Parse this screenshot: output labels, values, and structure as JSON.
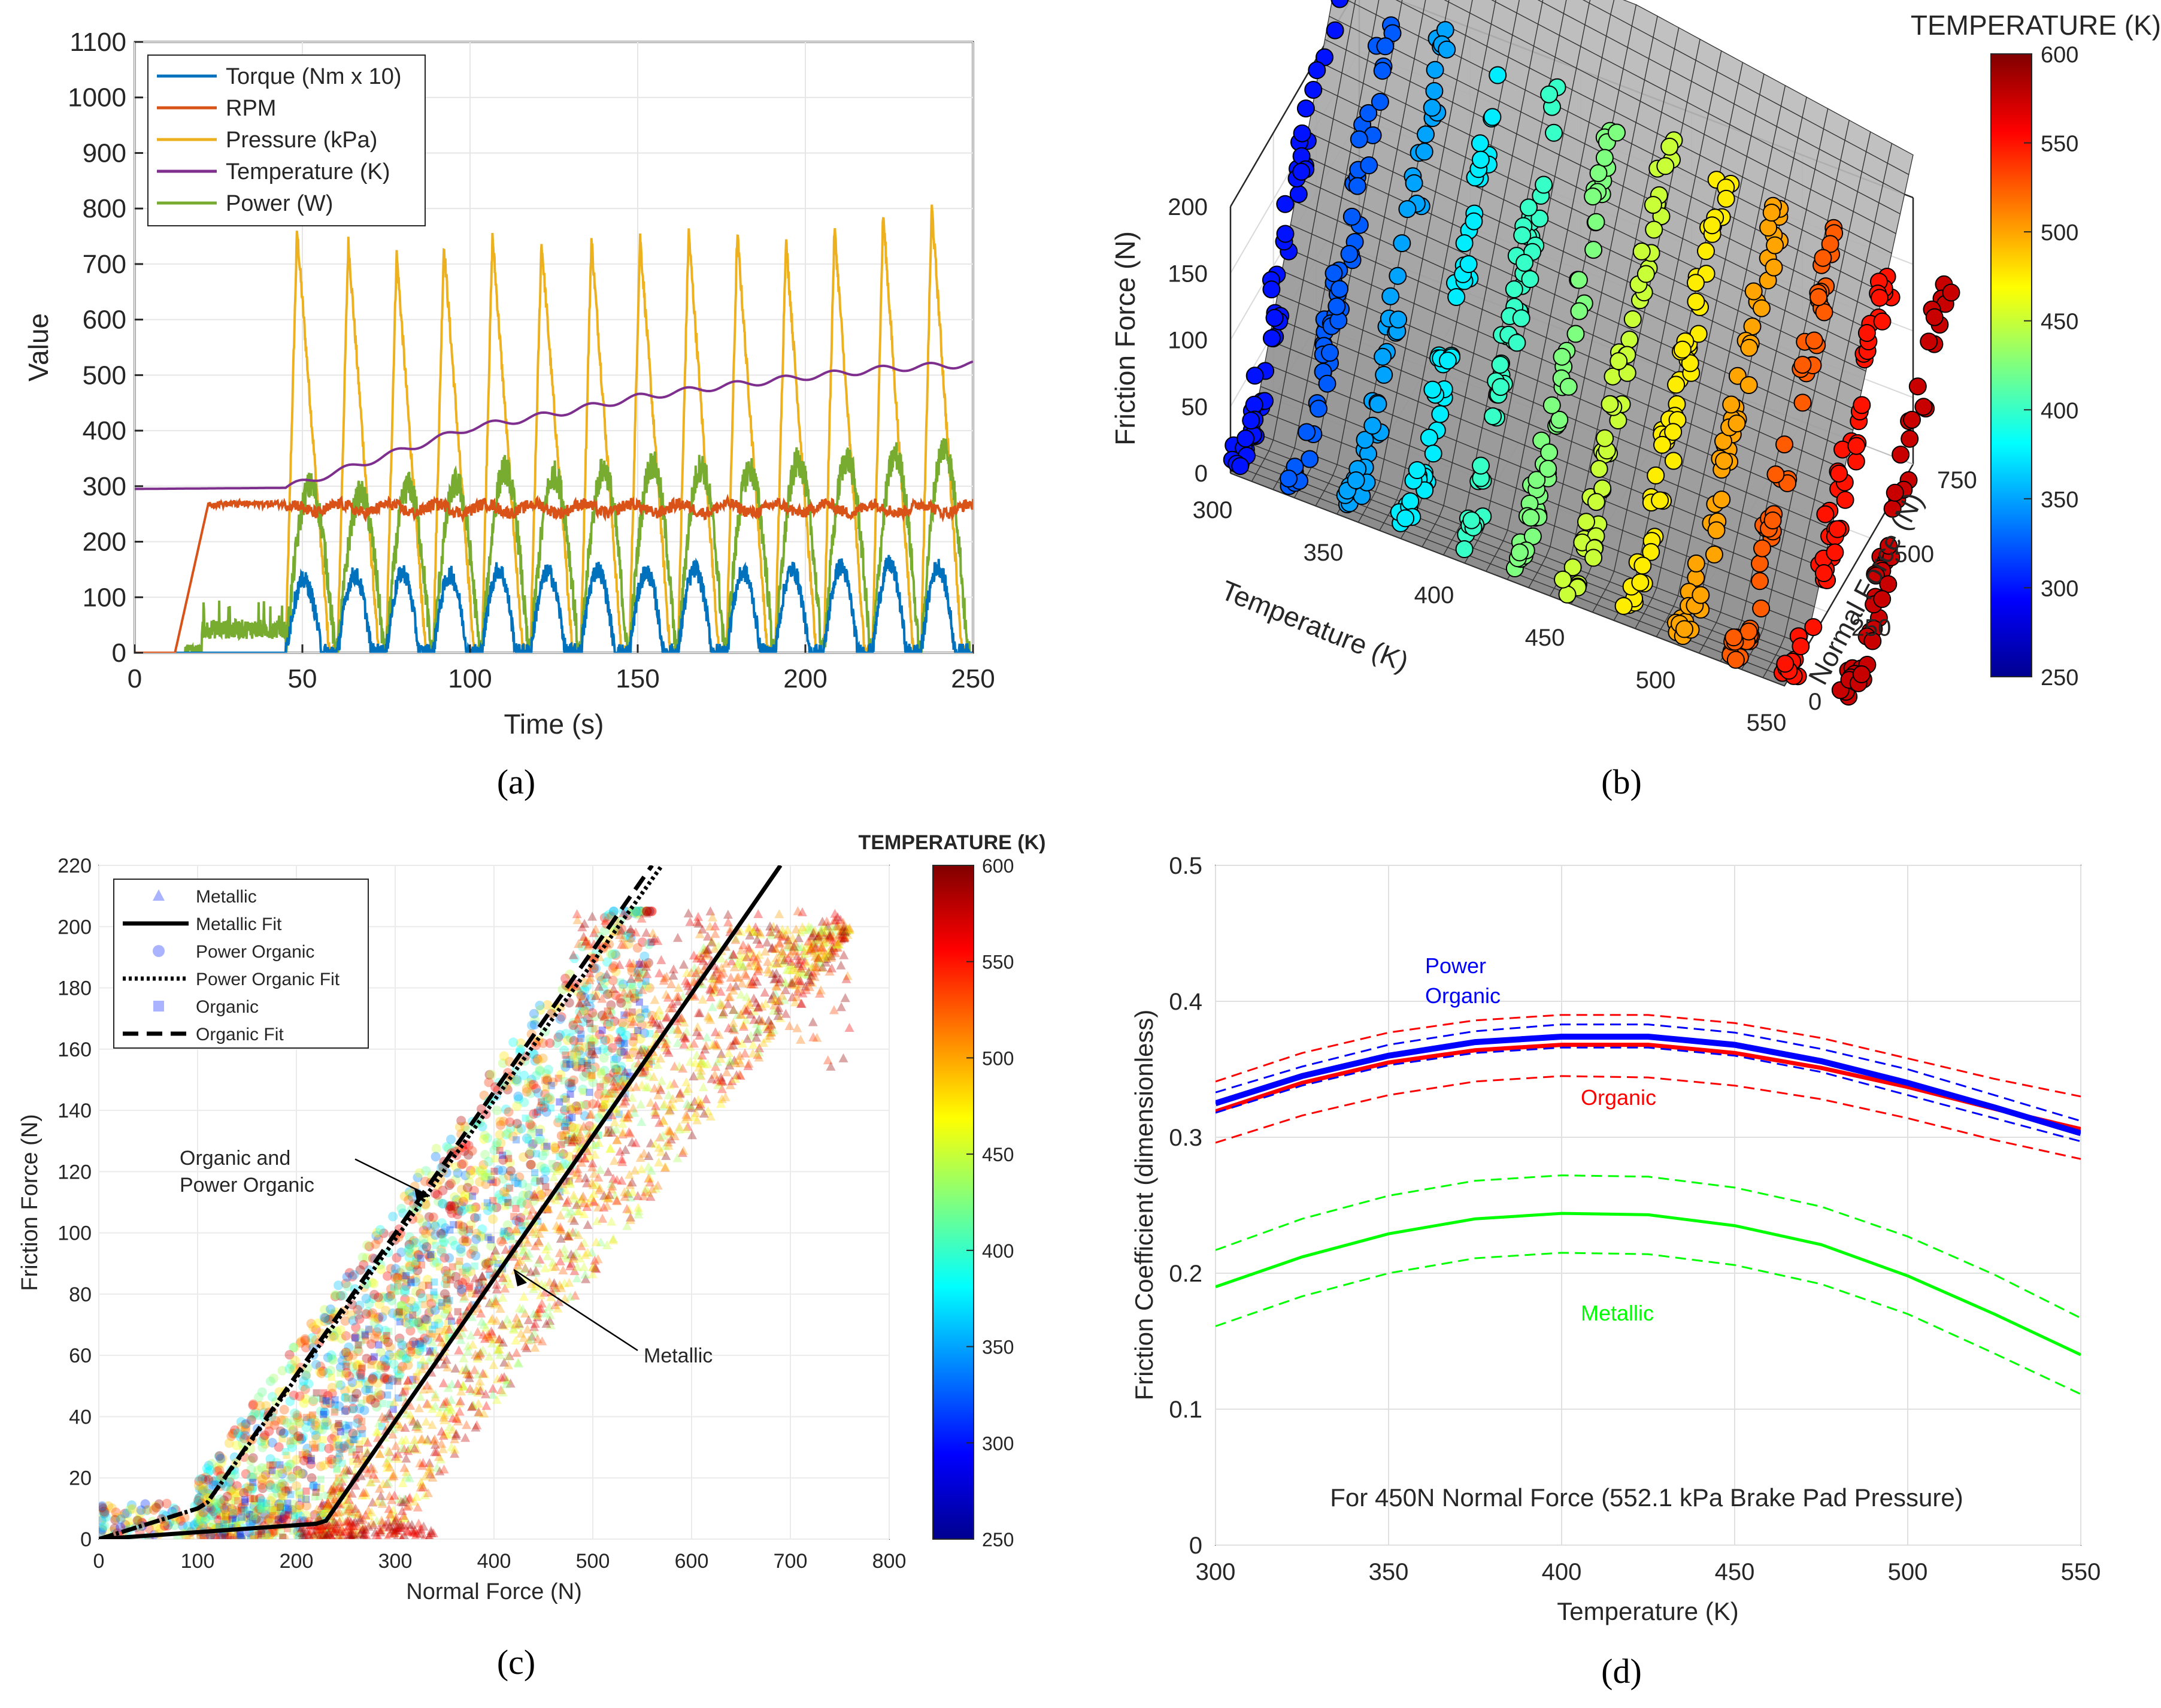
{
  "panels": {
    "a": {
      "label": "(a)"
    },
    "b": {
      "label": "(b)"
    },
    "c": {
      "label": "(c)"
    },
    "d": {
      "label": "(d)"
    }
  },
  "colors": {
    "torque": "#0072BD",
    "rpm": "#D95319",
    "pressure": "#EDB120",
    "temperature": "#7E2F8E",
    "power": "#77AC30",
    "power_organic": "#0000ff",
    "organic": "#ff0000",
    "metallic": "#00ff00"
  },
  "chart_data": [
    {
      "id": "a",
      "type": "line",
      "title": "",
      "xlabel": "Time (s)",
      "ylabel": "Value",
      "xlim": [
        0,
        250
      ],
      "ylim": [
        0,
        1100
      ],
      "xticks": [
        0,
        50,
        100,
        150,
        200,
        250
      ],
      "yticks": [
        0,
        100,
        200,
        300,
        400,
        500,
        600,
        700,
        800,
        900,
        1000,
        1100
      ],
      "legend": [
        "Torque (Nm x 10)",
        "RPM",
        "Pressure (kPa)",
        "Temperature (K)",
        "Power (W)"
      ],
      "cycle_starts": [
        45,
        60.5,
        75,
        89,
        103.5,
        118,
        133,
        147.5,
        162,
        176.5,
        191,
        205.5,
        220,
        234.5
      ],
      "pressure_peaks": [
        760,
        740,
        720,
        735,
        750,
        740,
        745,
        750,
        760,
        755,
        745,
        765,
        790,
        805
      ],
      "power_peaks": [
        300,
        285,
        300,
        305,
        330,
        320,
        330,
        340,
        335,
        330,
        345,
        350,
        355,
        370
      ],
      "torque_peaks": [
        130,
        140,
        145,
        140,
        150,
        145,
        150,
        145,
        150,
        145,
        150,
        155,
        160,
        155
      ],
      "rpm_level": 260,
      "rpm_ramp": [
        [
          0,
          0
        ],
        [
          12,
          0
        ],
        [
          22,
          270
        ]
      ],
      "temperature_curve": [
        [
          0,
          295
        ],
        [
          45,
          297
        ],
        [
          60,
          325
        ],
        [
          80,
          365
        ],
        [
          100,
          405
        ],
        [
          125,
          430
        ],
        [
          150,
          460
        ],
        [
          175,
          480
        ],
        [
          200,
          497
        ],
        [
          225,
          512
        ],
        [
          250,
          520
        ]
      ]
    },
    {
      "id": "b",
      "type": "scatter3d",
      "xlabel": "Temperature (K)",
      "ylabel": "Normal Force (N)",
      "zlabel": "Friction Force (N)",
      "xticks": [
        300,
        350,
        400,
        450,
        500,
        550
      ],
      "yticks": [
        0,
        250,
        500,
        750
      ],
      "zticks": [
        0,
        50,
        100,
        150,
        200
      ],
      "colorbar_title": "TEMPERATURE (K)",
      "colorbar_range": [
        250,
        600
      ],
      "colorbar_ticks": [
        250,
        300,
        350,
        400,
        450,
        500,
        550,
        600
      ],
      "temperature_bands": [
        300,
        325,
        350,
        375,
        400,
        425,
        450,
        475,
        500,
        525,
        550,
        575
      ]
    },
    {
      "id": "c",
      "type": "scatter",
      "xlabel": "Normal Force (N)",
      "ylabel": "Friction Force (N)",
      "xlim": [
        0,
        800
      ],
      "ylim": [
        0,
        220
      ],
      "xticks": [
        0,
        100,
        200,
        300,
        400,
        500,
        600,
        700,
        800
      ],
      "yticks": [
        0,
        20,
        40,
        60,
        80,
        100,
        120,
        140,
        160,
        180,
        200,
        220
      ],
      "legend": [
        "Metallic",
        "Metallic Fit",
        "Power Organic",
        "Power Organic Fit",
        "Organic",
        "Organic Fit"
      ],
      "fits": {
        "metallic": [
          [
            0,
            0
          ],
          [
            220,
            5
          ],
          [
            230,
            6
          ],
          [
            690,
            220
          ]
        ],
        "power_organic": [
          [
            0,
            0
          ],
          [
            100,
            10
          ],
          [
            110,
            12
          ],
          [
            570,
            220
          ]
        ],
        "organic": [
          [
            0,
            0
          ],
          [
            100,
            10
          ],
          [
            110,
            12
          ],
          [
            560,
            220
          ]
        ]
      },
      "annotations": [
        {
          "text1": "Organic and",
          "text2": "Power Organic",
          "from": [
            120,
            128
          ],
          "to": [
            335,
            112
          ]
        },
        {
          "text1": "Metallic",
          "from": [
            550,
            66
          ],
          "to": [
            420,
            88
          ]
        }
      ],
      "colorbar_title": "TEMPERATURE (K)",
      "colorbar_range": [
        250,
        600
      ],
      "colorbar_ticks": [
        250,
        300,
        350,
        400,
        450,
        500,
        550,
        600
      ]
    },
    {
      "id": "d",
      "type": "line",
      "xlabel": "Temperature (K)",
      "ylabel": "Friction Coefficient (dimensionless)",
      "xlim": [
        300,
        550
      ],
      "ylim": [
        0,
        0.5
      ],
      "xticks": [
        300,
        350,
        400,
        450,
        500,
        550
      ],
      "yticks": [
        0,
        0.1,
        0.2,
        0.3,
        0.4,
        0.5
      ],
      "x": [
        300,
        325,
        350,
        375,
        400,
        425,
        450,
        475,
        500,
        525,
        550
      ],
      "series": [
        {
          "name": "Power Organic",
          "values": [
            0.325,
            0.345,
            0.36,
            0.37,
            0.374,
            0.374,
            0.368,
            0.356,
            0.34,
            0.322,
            0.303
          ],
          "upper": [
            0.333,
            0.352,
            0.368,
            0.378,
            0.383,
            0.383,
            0.377,
            0.365,
            0.35,
            0.331,
            0.312
          ],
          "lower": [
            0.318,
            0.338,
            0.353,
            0.362,
            0.366,
            0.366,
            0.36,
            0.348,
            0.331,
            0.314,
            0.297
          ]
        },
        {
          "name": "Organic",
          "values": [
            0.319,
            0.34,
            0.355,
            0.364,
            0.368,
            0.368,
            0.362,
            0.351,
            0.337,
            0.321,
            0.306
          ],
          "upper": [
            0.341,
            0.362,
            0.377,
            0.386,
            0.39,
            0.39,
            0.384,
            0.373,
            0.358,
            0.343,
            0.33
          ],
          "lower": [
            0.296,
            0.316,
            0.331,
            0.341,
            0.345,
            0.344,
            0.338,
            0.328,
            0.314,
            0.298,
            0.284
          ]
        },
        {
          "name": "Metallic",
          "values": [
            0.19,
            0.212,
            0.229,
            0.24,
            0.244,
            0.243,
            0.235,
            0.221,
            0.198,
            0.17,
            0.14
          ],
          "upper": [
            0.217,
            0.24,
            0.257,
            0.268,
            0.272,
            0.271,
            0.263,
            0.249,
            0.227,
            0.199,
            0.167
          ],
          "lower": [
            0.161,
            0.183,
            0.2,
            0.211,
            0.215,
            0.214,
            0.206,
            0.192,
            0.17,
            0.141,
            0.111
          ]
        }
      ],
      "labels": {
        "power_organic_1": "Power",
        "power_organic_2": "Organic",
        "organic": "Organic",
        "metallic": "Metallic"
      },
      "annotation": "For 450N Normal Force (552.1 kPa Brake Pad Pressure)"
    }
  ]
}
